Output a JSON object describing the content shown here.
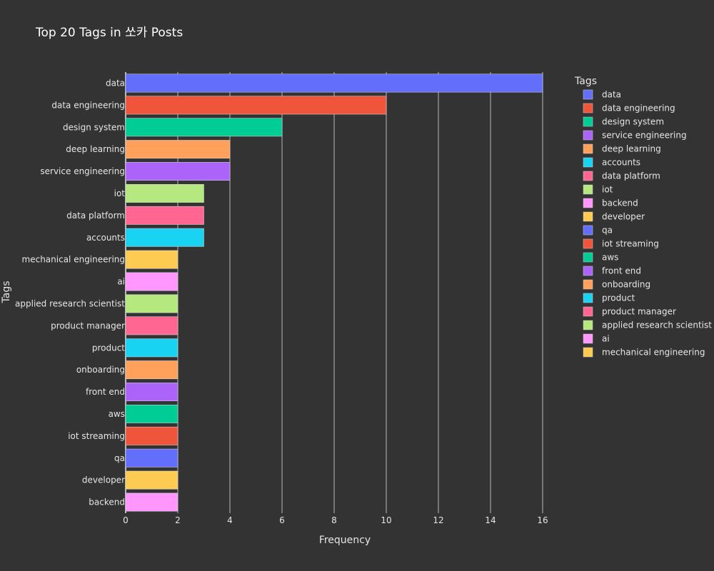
{
  "chart_data": {
    "type": "bar",
    "orientation": "horizontal",
    "title": "Top 20 Tags in 쏘카 Posts",
    "xlabel": "Frequency",
    "ylabel": "Tags",
    "xlim": [
      0,
      16
    ],
    "x_ticks": [
      "0",
      "2",
      "4",
      "6",
      "8",
      "10",
      "12",
      "14",
      "16"
    ],
    "grid": "vertical",
    "legend_position": "right",
    "legend_title": "Tags",
    "categories": [
      "data",
      "data engineering",
      "design system",
      "deep learning",
      "service engineering",
      "iot",
      "data platform",
      "accounts",
      "mechanical engineering",
      "ai",
      "applied research scientist",
      "product manager",
      "product",
      "onboarding",
      "front end",
      "aws",
      "iot streaming",
      "qa",
      "developer",
      "backend"
    ],
    "values": [
      16,
      10,
      6,
      4,
      4,
      3,
      3,
      3,
      2,
      2,
      2,
      2,
      2,
      2,
      2,
      2,
      2,
      2,
      2,
      2
    ],
    "legend": [
      {
        "name": "data",
        "color": "#636efa"
      },
      {
        "name": "data engineering",
        "color": "#ef553b"
      },
      {
        "name": "design system",
        "color": "#00cc96"
      },
      {
        "name": "service engineering",
        "color": "#ab63fa"
      },
      {
        "name": "deep learning",
        "color": "#ffa15a"
      },
      {
        "name": "accounts",
        "color": "#19d3f3"
      },
      {
        "name": "data platform",
        "color": "#ff6692"
      },
      {
        "name": "iot",
        "color": "#b6e880"
      },
      {
        "name": "backend",
        "color": "#ff97ff"
      },
      {
        "name": "developer",
        "color": "#fecb52"
      },
      {
        "name": "qa",
        "color": "#636efa"
      },
      {
        "name": "iot streaming",
        "color": "#ef553b"
      },
      {
        "name": "aws",
        "color": "#00cc96"
      },
      {
        "name": "front end",
        "color": "#ab63fa"
      },
      {
        "name": "onboarding",
        "color": "#ffa15a"
      },
      {
        "name": "product",
        "color": "#19d3f3"
      },
      {
        "name": "product manager",
        "color": "#ff6692"
      },
      {
        "name": "applied research scientist",
        "color": "#b6e880"
      },
      {
        "name": "ai",
        "color": "#ff97ff"
      },
      {
        "name": "mechanical engineering",
        "color": "#fecb52"
      }
    ]
  }
}
